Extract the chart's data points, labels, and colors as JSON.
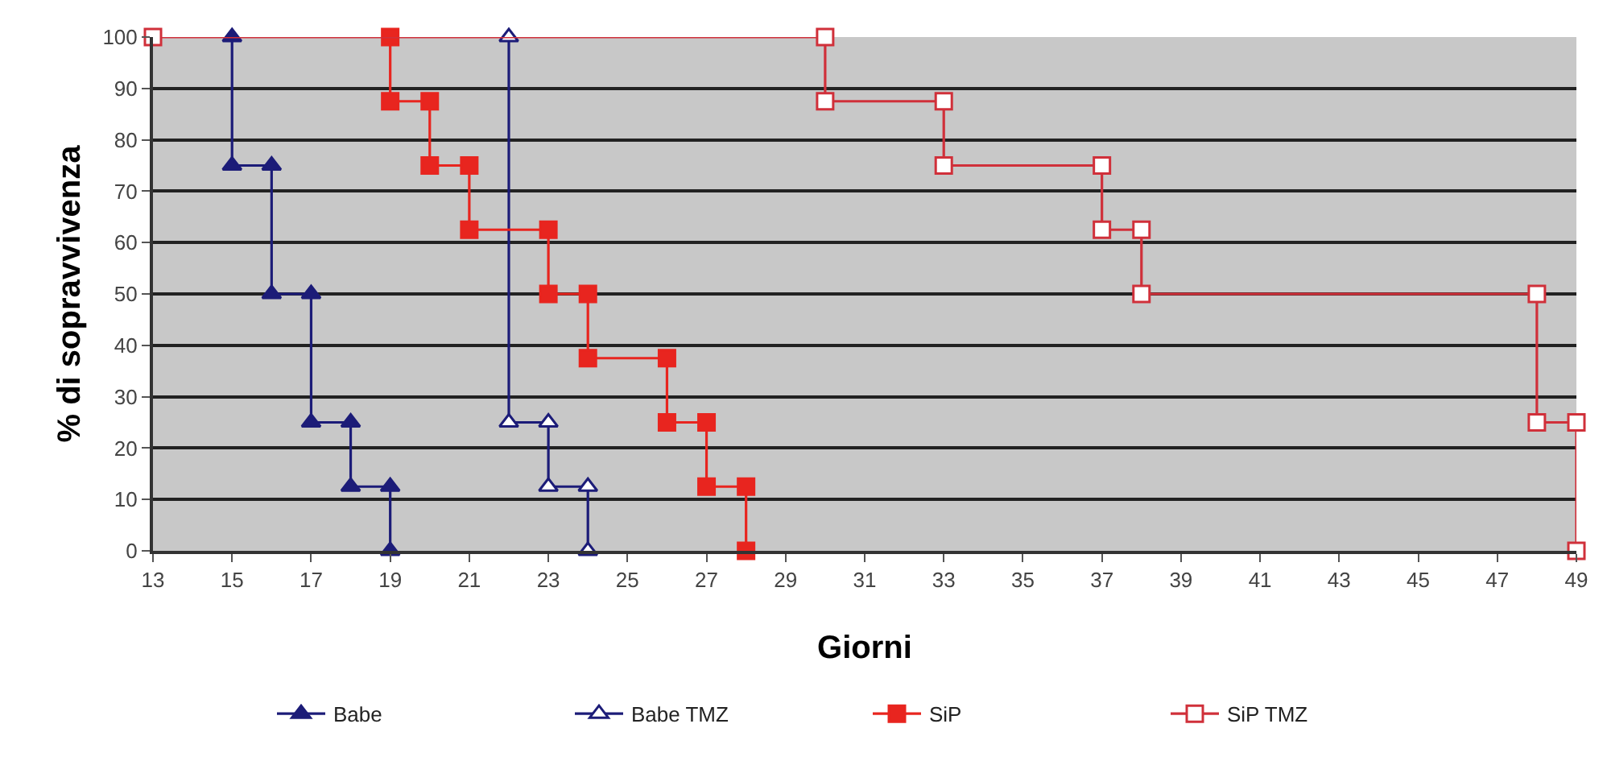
{
  "chart_data": {
    "type": "line",
    "xlabel": "Giorni",
    "ylabel": "% di sopravvivenza",
    "xlim": [
      13,
      49
    ],
    "xticks": [
      13,
      15,
      17,
      19,
      21,
      23,
      25,
      27,
      29,
      31,
      33,
      35,
      37,
      39,
      41,
      43,
      45,
      47,
      49
    ],
    "ylim": [
      0,
      100
    ],
    "yticks": [
      0,
      10,
      20,
      30,
      40,
      50,
      60,
      70,
      80,
      90,
      100
    ],
    "grid": "y",
    "legend": "bottom",
    "series": [
      {
        "name": "Babe",
        "color": "#1c1c78",
        "marker": "triangle",
        "x": [
          15,
          15,
          16,
          16,
          17,
          17,
          18,
          18,
          19,
          19
        ],
        "values": [
          100,
          75,
          75,
          50,
          50,
          25,
          25,
          12.5,
          12.5,
          0
        ]
      },
      {
        "name": "Babe TMZ",
        "color": "#1c1c78",
        "marker": "triangle-open",
        "x": [
          22,
          22,
          23,
          23,
          24,
          24
        ],
        "values": [
          100,
          25,
          25,
          12.5,
          12.5,
          0
        ]
      },
      {
        "name": "SiP",
        "color": "#e8251f",
        "marker": "square",
        "x": [
          19,
          19,
          20,
          20,
          21,
          21,
          23,
          23,
          24,
          24,
          26,
          26,
          27,
          27,
          28,
          28
        ],
        "values": [
          100,
          87.5,
          87.5,
          75,
          75,
          62.5,
          62.5,
          50,
          50,
          37.5,
          37.5,
          25,
          25,
          12.5,
          12.5,
          0
        ]
      },
      {
        "name": "SiP TMZ",
        "color": "#d0303a",
        "marker": "square-open",
        "x": [
          13,
          30,
          30,
          33,
          33,
          37,
          37,
          38,
          38,
          48,
          48,
          49,
          49
        ],
        "values": [
          100,
          100,
          87.5,
          87.5,
          75,
          75,
          62.5,
          62.5,
          50,
          50,
          25,
          25,
          0
        ]
      }
    ]
  }
}
